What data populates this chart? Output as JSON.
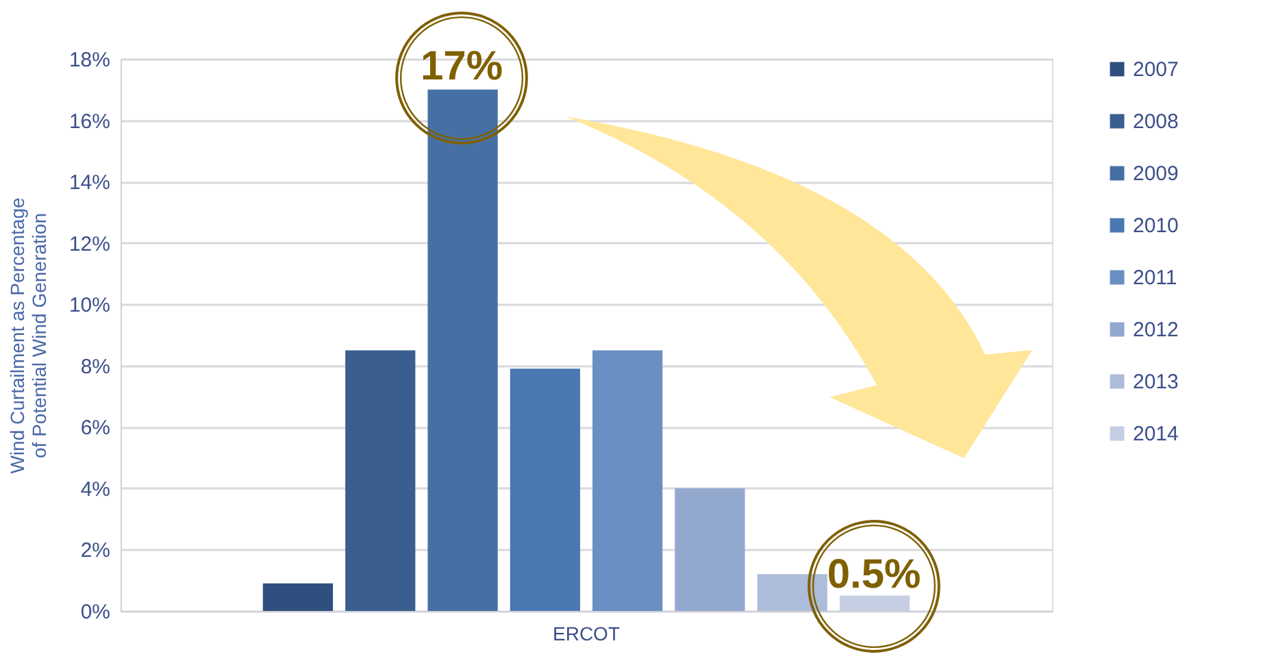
{
  "chart_data": {
    "type": "bar",
    "xlabel": null,
    "ylabel": "Wind Curtailment as Percentage of Potential Wind Generation",
    "categories": [
      "ERCOT"
    ],
    "series": [
      {
        "name": "2007",
        "color": "#2f4f7f",
        "values": [
          0.9
        ]
      },
      {
        "name": "2008",
        "color": "#3a5f8f",
        "values": [
          8.5
        ]
      },
      {
        "name": "2009",
        "color": "#4670a4",
        "values": [
          17
        ]
      },
      {
        "name": "2010",
        "color": "#4a78b2",
        "values": [
          7.9
        ]
      },
      {
        "name": "2011",
        "color": "#6a8fc2",
        "values": [
          8.5
        ]
      },
      {
        "name": "2012",
        "color": "#93a8cf",
        "values": [
          4.0
        ]
      },
      {
        "name": "2013",
        "color": "#adbcda",
        "values": [
          1.2
        ]
      },
      {
        "name": "2014",
        "color": "#c5cee2",
        "values": [
          0.5
        ]
      }
    ],
    "ylim": [
      0,
      18
    ],
    "yticks": [
      {
        "value": 0,
        "label": "0%"
      },
      {
        "value": 2,
        "label": "2%"
      },
      {
        "value": 4,
        "label": "4%"
      },
      {
        "value": 6,
        "label": "6%"
      },
      {
        "value": 8,
        "label": "8%"
      },
      {
        "value": 10,
        "label": "10%"
      },
      {
        "value": 12,
        "label": "12%"
      },
      {
        "value": 14,
        "label": "14%"
      },
      {
        "value": 16,
        "label": "16%"
      },
      {
        "value": 18,
        "label": "18%"
      }
    ],
    "grid": "y",
    "legend": "right",
    "annotations": [
      "17%",
      "0.5%"
    ]
  }
}
